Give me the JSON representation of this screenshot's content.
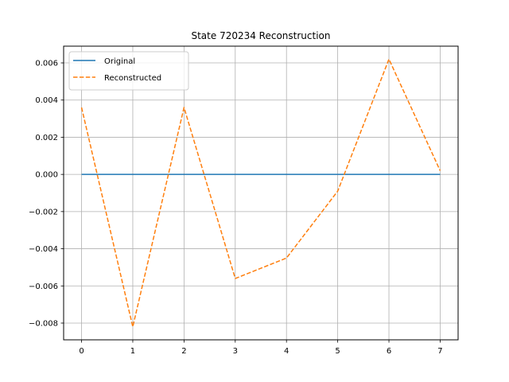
{
  "chart_data": {
    "type": "line",
    "title": "State 720234 Reconstruction",
    "xlabel": "",
    "ylabel": "",
    "x": [
      0,
      1,
      2,
      3,
      4,
      5,
      6,
      7
    ],
    "xlim": [
      -0.35,
      7.35
    ],
    "ylim": [
      -0.0089,
      0.0069
    ],
    "xticks": [
      "0",
      "1",
      "2",
      "3",
      "4",
      "5",
      "6",
      "7"
    ],
    "yticks": [
      {
        "value": -0.008,
        "label": "−0.008"
      },
      {
        "value": -0.006,
        "label": "−0.006"
      },
      {
        "value": -0.004,
        "label": "−0.004"
      },
      {
        "value": -0.002,
        "label": "−0.002"
      },
      {
        "value": 0.0,
        "label": "0.000"
      },
      {
        "value": 0.002,
        "label": "0.002"
      },
      {
        "value": 0.004,
        "label": "0.004"
      },
      {
        "value": 0.006,
        "label": "0.006"
      }
    ],
    "grid": true,
    "legend_position": "upper-left",
    "series": [
      {
        "name": "Original",
        "values": [
          0,
          0,
          0,
          0,
          0,
          0,
          0,
          0
        ],
        "color": "#1f77b4",
        "style": "solid"
      },
      {
        "name": "Reconstructed",
        "values": [
          0.0036,
          -0.0082,
          0.0036,
          -0.0056,
          -0.0045,
          -0.0009,
          0.0062,
          0.0002
        ],
        "color": "#ff7f0e",
        "style": "dashed"
      }
    ]
  }
}
